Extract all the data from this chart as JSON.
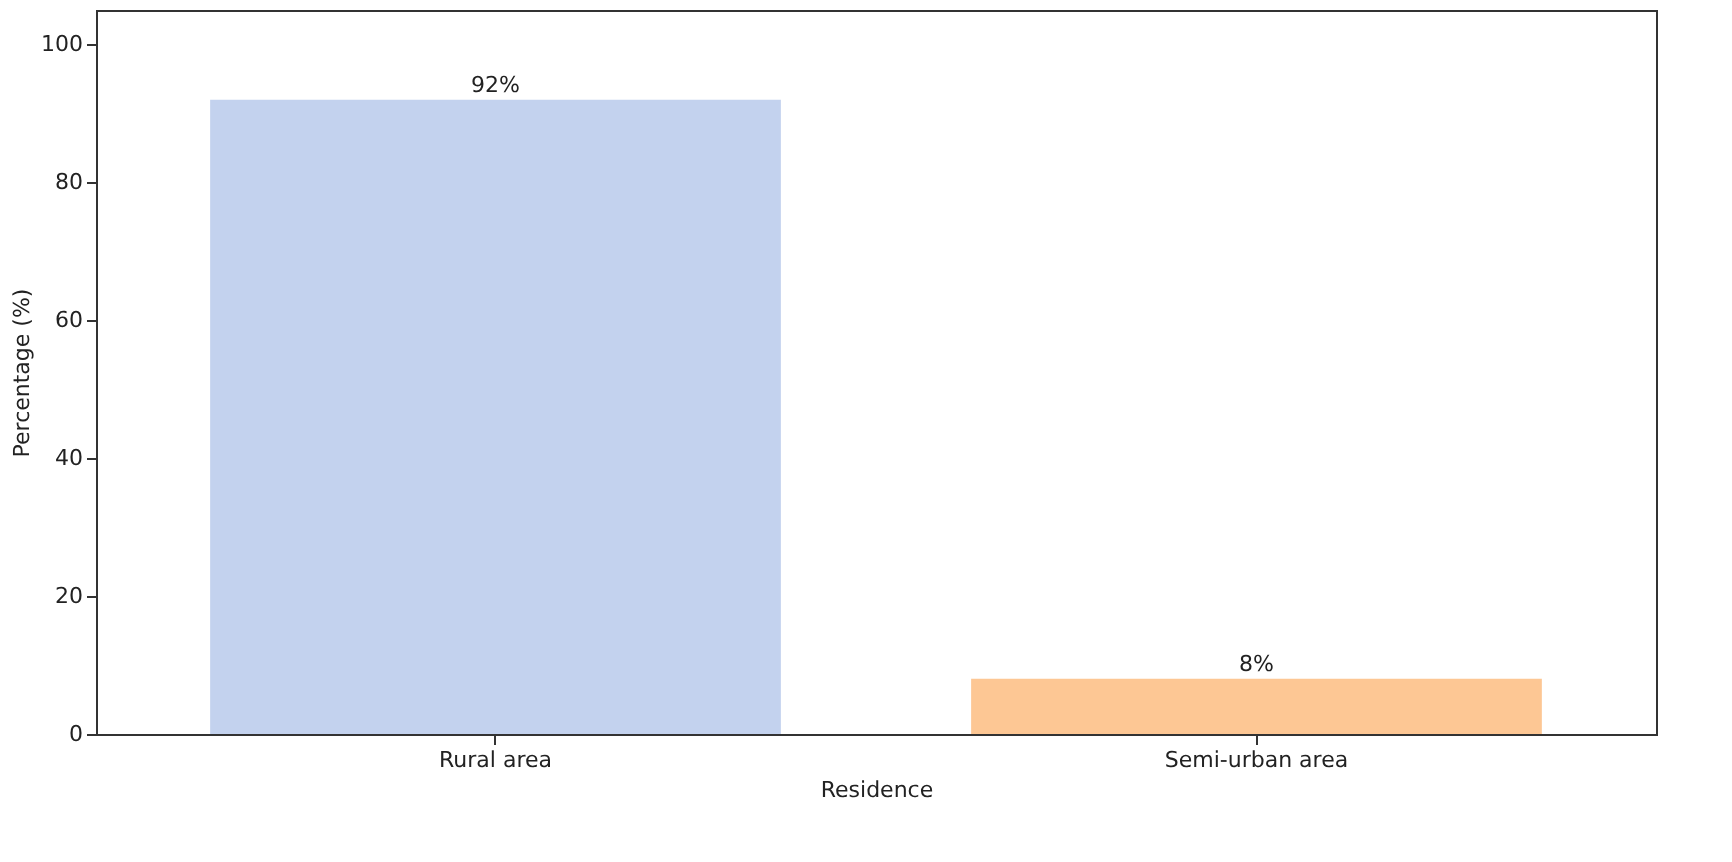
{
  "chart_data": {
    "type": "bar",
    "xlabel": "Residence",
    "ylabel": "Percentage (%)",
    "categories": [
      "Rural area",
      "Semi-urban area"
    ],
    "values": [
      92,
      8
    ],
    "colors": [
      "#c3d2ee",
      "#fdc794"
    ],
    "value_labels": [
      "92%",
      "8%"
    ],
    "ylim": [
      0,
      105
    ],
    "yticks": [
      0,
      20,
      40,
      60,
      80,
      100
    ],
    "grid": false,
    "legend": false
  }
}
